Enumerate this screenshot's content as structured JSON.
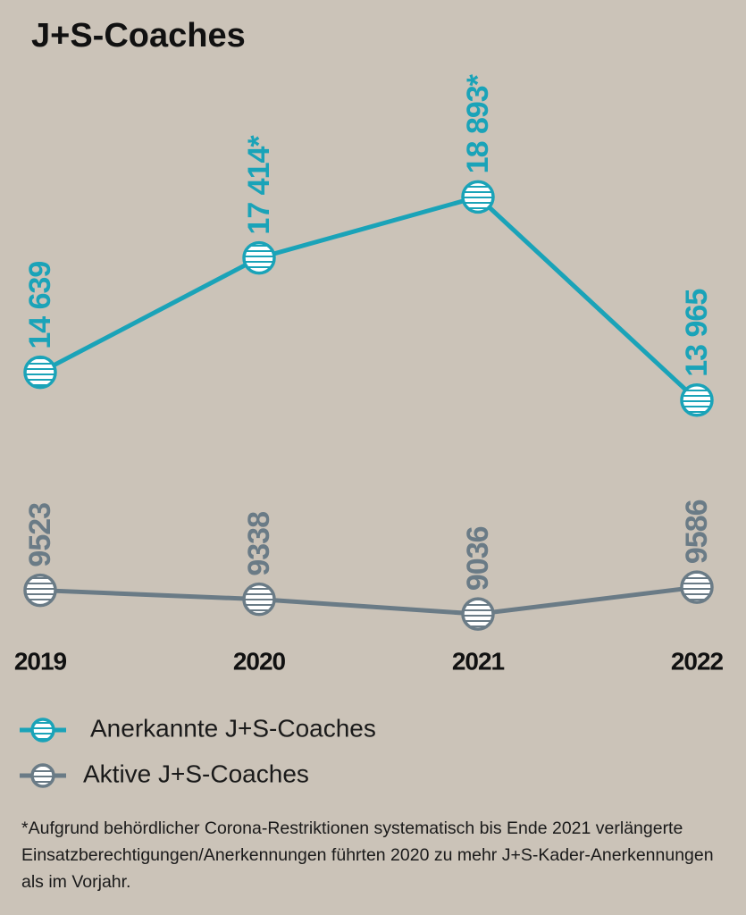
{
  "chart_data": {
    "type": "line",
    "title": "J+S-Coaches",
    "categories": [
      "2019",
      "2020",
      "2021",
      "2022"
    ],
    "series": [
      {
        "name": "Anerkannte J+S-Coaches",
        "color": "#1aa3b8",
        "values": [
          14639,
          17414,
          18893,
          13965
        ],
        "value_labels": [
          "14 639",
          "17 414*",
          "18 893*",
          "13 965"
        ]
      },
      {
        "name": "Aktive J+S-Coaches",
        "color": "#6a7b86",
        "values": [
          9523,
          9338,
          9036,
          9586
        ],
        "axis": "y2"
      }
    ],
    "ylim": [
      8500,
      21500
    ],
    "y2lim": [
      8800,
      19800
    ],
    "legend": "bottom-left",
    "footnote": "*Aufgrund behördlicher Corona-Restriktionen systematisch bis Ende 2021 verlängerte Einsatzberechtigungen/Anerkennungen führten 2020 zu mehr J+S-Kader-Anerkennungen als im Vorjahr."
  }
}
